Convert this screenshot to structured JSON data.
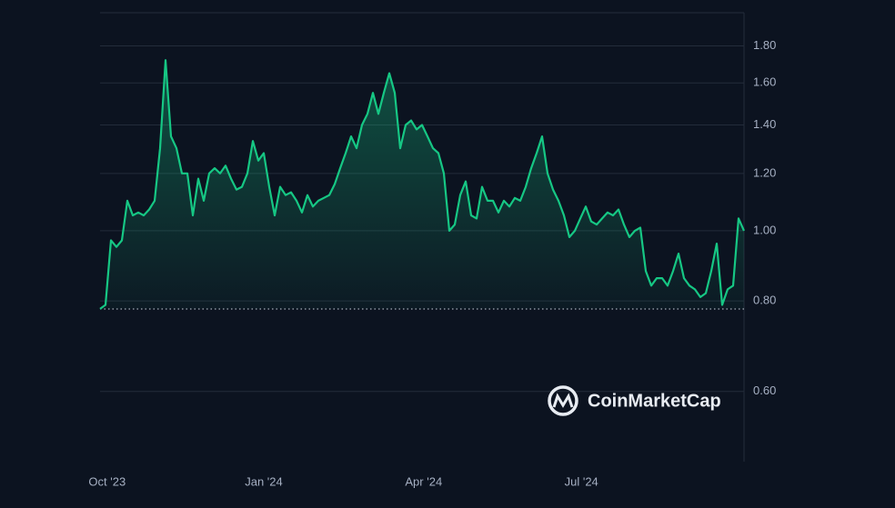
{
  "chart_data": {
    "type": "line",
    "watermark": "CoinMarketCap",
    "log_scale": true,
    "grid": true,
    "color": "#16c784",
    "xlim": [
      0,
      118
    ],
    "xticks": [
      {
        "value": 1.3,
        "label": "Oct '23"
      },
      {
        "value": 30,
        "label": "Jan '24"
      },
      {
        "value": 59.3,
        "label": "Apr '24"
      },
      {
        "value": 88.2,
        "label": "Jul '24"
      }
    ],
    "ylim": [
      0.48,
      2.0
    ],
    "yticks": [
      {
        "value": 0.6,
        "label": "0.60"
      },
      {
        "value": 0.8,
        "label": "0.80"
      },
      {
        "value": 1.0,
        "label": "1.00"
      },
      {
        "value": 1.2,
        "label": "1.20"
      },
      {
        "value": 1.4,
        "label": "1.40"
      },
      {
        "value": 1.6,
        "label": "1.60"
      },
      {
        "value": 1.8,
        "label": "1.80"
      }
    ],
    "values": [
      0.78,
      0.79,
      0.97,
      0.95,
      0.97,
      1.1,
      1.05,
      1.06,
      1.05,
      1.07,
      1.1,
      1.3,
      1.72,
      1.35,
      1.3,
      1.2,
      1.2,
      1.05,
      1.18,
      1.1,
      1.2,
      1.22,
      1.2,
      1.23,
      1.18,
      1.14,
      1.15,
      1.2,
      1.33,
      1.25,
      1.28,
      1.15,
      1.05,
      1.15,
      1.12,
      1.13,
      1.1,
      1.06,
      1.12,
      1.08,
      1.1,
      1.11,
      1.12,
      1.16,
      1.22,
      1.28,
      1.35,
      1.3,
      1.4,
      1.45,
      1.55,
      1.45,
      1.55,
      1.65,
      1.55,
      1.3,
      1.4,
      1.42,
      1.38,
      1.4,
      1.35,
      1.3,
      1.28,
      1.2,
      1.0,
      1.02,
      1.12,
      1.17,
      1.05,
      1.04,
      1.15,
      1.1,
      1.1,
      1.06,
      1.1,
      1.08,
      1.11,
      1.1,
      1.15,
      1.22,
      1.28,
      1.35,
      1.2,
      1.14,
      1.1,
      1.05,
      0.98,
      1.0,
      1.04,
      1.08,
      1.03,
      1.02,
      1.04,
      1.06,
      1.05,
      1.07,
      1.02,
      0.98,
      1.0,
      1.01,
      0.88,
      0.84,
      0.86,
      0.86,
      0.84,
      0.88,
      0.93,
      0.86,
      0.84,
      0.83,
      0.81,
      0.82,
      0.88,
      0.96,
      0.79,
      0.83,
      0.84,
      1.04,
      1.0
    ]
  }
}
